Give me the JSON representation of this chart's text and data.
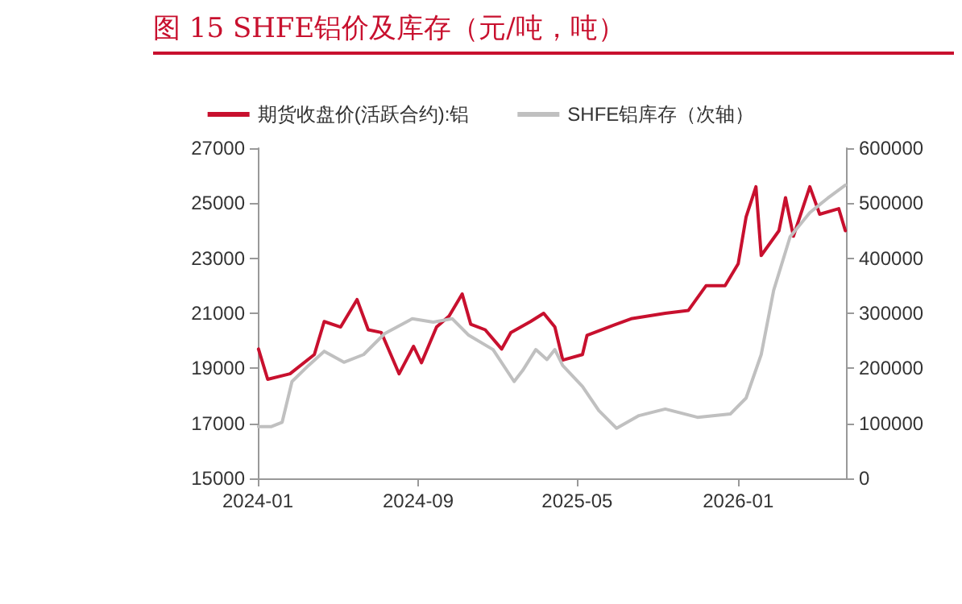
{
  "chart_data": {
    "type": "line",
    "title": "图 15 SHFE铝价及库存（元/吨，吨）",
    "series": [
      {
        "name": "期货收盘价(活跃合约):铝",
        "color": "#c8102e",
        "x": [
          "2024-01-02",
          "2024-01-16",
          "2024-02-19",
          "2024-03-27",
          "2024-04-11",
          "2024-05-06",
          "2024-05-31",
          "2024-06-17",
          "2024-07-07",
          "2024-08-03",
          "2024-08-25",
          "2024-09-06",
          "2024-09-29",
          "2024-10-18",
          "2024-11-07",
          "2024-11-20",
          "2024-12-12",
          "2025-01-06",
          "2025-01-20",
          "2025-02-19",
          "2025-03-11",
          "2025-03-28",
          "2025-04-09",
          "2025-05-09",
          "2025-05-16",
          "2025-06-18",
          "2025-07-22",
          "2025-09-12",
          "2025-10-17",
          "2025-11-13",
          "2025-12-12",
          "2026-01-01",
          "2026-01-13",
          "2026-01-28",
          "2026-02-05",
          "2026-03-04",
          "2026-03-14",
          "2026-03-26",
          "2026-04-20",
          "2026-05-05",
          "2026-06-03",
          "2026-06-13"
        ],
        "values": [
          19700,
          18600,
          18800,
          19500,
          20700,
          20500,
          21500,
          20400,
          20300,
          18800,
          19800,
          19200,
          20500,
          20900,
          21700,
          20600,
          20400,
          19700,
          20300,
          20700,
          21000,
          20500,
          19300,
          19500,
          20200,
          20500,
          20800,
          21000,
          21100,
          22000,
          22000,
          22800,
          24500,
          25600,
          23100,
          24000,
          25200,
          23800,
          25600,
          24600,
          24800,
          24000
        ]
      },
      {
        "name": "SHFE铝库存（次轴）",
        "color": "#c0c0c0",
        "axis": "y2",
        "x": [
          "2024-01-02",
          "2024-01-21",
          "2024-02-07",
          "2024-02-22",
          "2024-03-18",
          "2024-04-11",
          "2024-05-11",
          "2024-06-10",
          "2024-07-12",
          "2024-08-23",
          "2024-09-24",
          "2024-10-23",
          "2024-11-17",
          "2024-12-24",
          "2025-01-25",
          "2025-02-07",
          "2025-02-27",
          "2025-03-16",
          "2025-03-28",
          "2025-04-09",
          "2025-05-09",
          "2025-06-03",
          "2025-06-30",
          "2025-08-03",
          "2025-09-12",
          "2025-10-31",
          "2025-12-20",
          "2026-01-13",
          "2026-02-05",
          "2026-02-24",
          "2026-03-21",
          "2026-04-20",
          "2026-05-17",
          "2026-06-13"
        ],
        "values": [
          94000,
          94000,
          102000,
          176000,
          205000,
          231000,
          211000,
          225000,
          263000,
          290000,
          284000,
          290000,
          260000,
          234000,
          176000,
          196000,
          234000,
          216000,
          234000,
          205000,
          167000,
          123000,
          91000,
          114000,
          126000,
          111000,
          117000,
          146000,
          225000,
          342000,
          439000,
          483000,
          509000,
          533000
        ]
      }
    ],
    "xlim": [
      "2024-01-01",
      "2026-06-14"
    ],
    "xticks": [
      {
        "value": "2024-01-01",
        "label": "2024-01"
      },
      {
        "value": "2024-09-01",
        "label": "2024-09"
      },
      {
        "value": "2025-05-01",
        "label": "2025-05"
      },
      {
        "value": "2026-01-01",
        "label": "2026-01"
      }
    ],
    "ylim": [
      15000,
      27000
    ],
    "yticks": [
      15000,
      17000,
      19000,
      21000,
      23000,
      25000,
      27000
    ],
    "y2lim": [
      0,
      600000
    ],
    "y2ticks": [
      0,
      100000,
      200000,
      300000,
      400000,
      500000,
      600000
    ],
    "legend": "top",
    "grid": false,
    "marker": "none",
    "line_style": "solid"
  }
}
